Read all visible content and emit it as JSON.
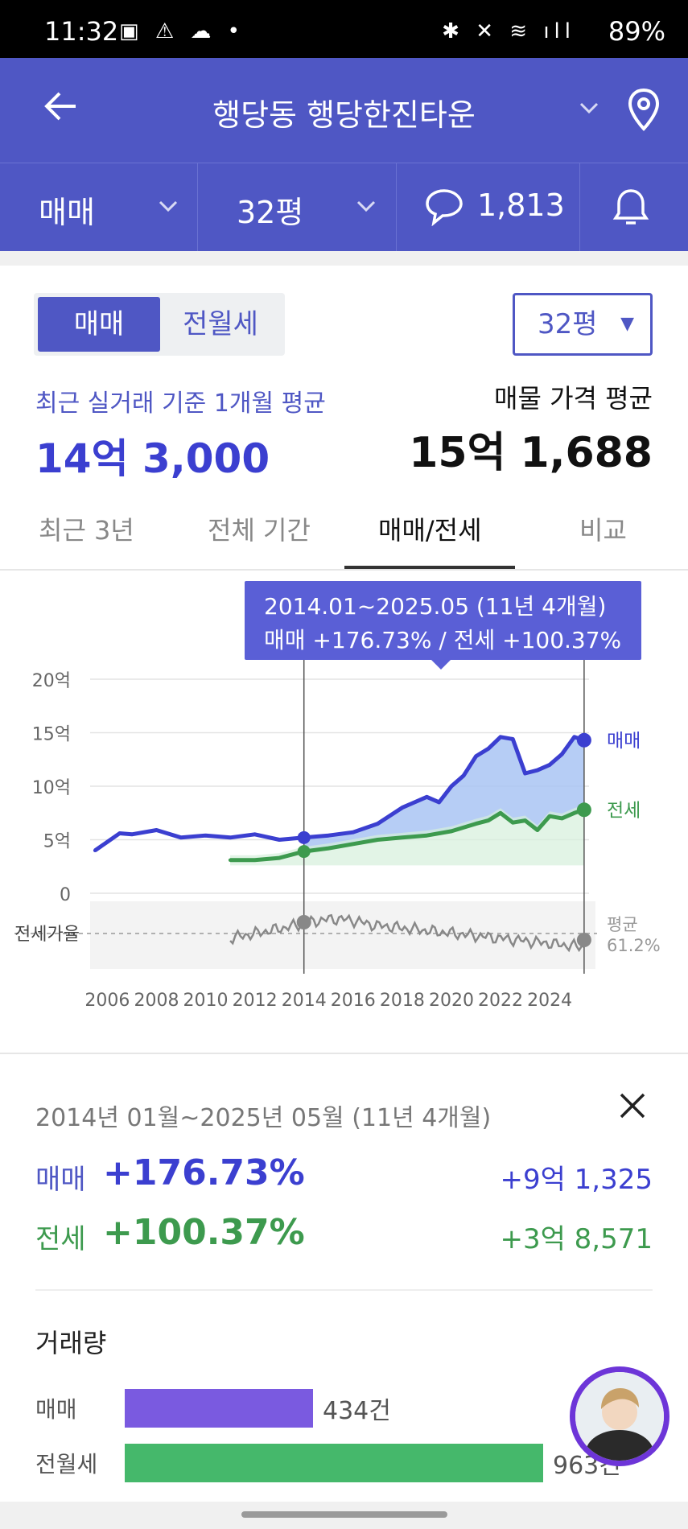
{
  "status_bar": {
    "time": "11:32",
    "battery": "89%"
  },
  "header": {
    "title": "행당동 행당한진타운"
  },
  "subheader": {
    "trade_type": "매매",
    "pyeong": "32평",
    "comment_count": "1,813"
  },
  "summary": {
    "toggle": [
      "매매",
      "전월세"
    ],
    "pyeong_select": "32평",
    "recent_label": "최근 실거래 기준 1개월 평균",
    "recent_price": "14억 3,000",
    "listing_label": "매물 가격 평균",
    "listing_price": "15억 1,688"
  },
  "tabs": [
    "최근 3년",
    "전체 기간",
    "매매/전세",
    "비교"
  ],
  "active_tab": "매매/전세",
  "tooltip": {
    "line1": "2014.01~2025.05 (11년 4개월)",
    "line2": "매매 +176.73%  /  전세 +100.37%"
  },
  "chart_data": {
    "type": "line",
    "y_tick_labels": [
      "20억",
      "15억",
      "10억",
      "5억",
      "0"
    ],
    "ylim": [
      0,
      20
    ],
    "x_tick_labels": [
      "2006",
      "2008",
      "2010",
      "2012",
      "2014",
      "2016",
      "2018",
      "2020",
      "2022",
      "2024"
    ],
    "series": [
      {
        "name": "매매",
        "color": "#3b3fd0",
        "x": [
          2005.5,
          2006,
          2006.5,
          2007,
          2008,
          2009,
          2010,
          2011,
          2012,
          2013,
          2014,
          2015,
          2016,
          2017,
          2018,
          2019,
          2019.5,
          2020,
          2020.5,
          2021,
          2021.5,
          2022,
          2022.5,
          2023,
          2023.5,
          2024,
          2024.5,
          2025,
          2025.4
        ],
        "values": [
          4.0,
          4.8,
          5.6,
          5.5,
          5.9,
          5.2,
          5.4,
          5.2,
          5.5,
          5.0,
          5.2,
          5.4,
          5.7,
          6.5,
          8.0,
          9.0,
          8.5,
          10.0,
          11.0,
          12.8,
          13.5,
          14.6,
          14.4,
          11.2,
          11.5,
          12.0,
          13.0,
          14.6,
          14.3
        ]
      },
      {
        "name": "전세",
        "color": "#3d9a4e",
        "x": [
          2011,
          2012,
          2013,
          2014,
          2015,
          2016,
          2017,
          2018,
          2019,
          2020,
          2021,
          2021.5,
          2022,
          2022.5,
          2023,
          2023.5,
          2024,
          2024.5,
          2025,
          2025.4
        ],
        "values": [
          3.1,
          3.1,
          3.3,
          3.9,
          4.2,
          4.6,
          5.0,
          5.2,
          5.4,
          5.8,
          6.5,
          6.8,
          7.5,
          6.6,
          6.8,
          5.9,
          7.2,
          7.0,
          7.5,
          7.8
        ]
      }
    ],
    "end_labels": [
      "매매",
      "전세"
    ],
    "ratio_panel": {
      "label": "전세가율",
      "average_label": "평균",
      "average_value": "61.2%"
    }
  },
  "detail": {
    "range": "2014년 01월~2025년 05월 (11년 4개월)",
    "rows": [
      {
        "label": "매매",
        "pct": "+176.73%",
        "amount": "+9억 1,325"
      },
      {
        "label": "전세",
        "pct": "+100.37%",
        "amount": "+3억 8,571"
      }
    ]
  },
  "volume": {
    "title": "거래량",
    "items": [
      {
        "label": "매매",
        "value": "434건",
        "count": 434,
        "color": "#7a5ae0"
      },
      {
        "label": "전월세",
        "value": "963건",
        "count": 963,
        "color": "#45b86b"
      }
    ]
  }
}
